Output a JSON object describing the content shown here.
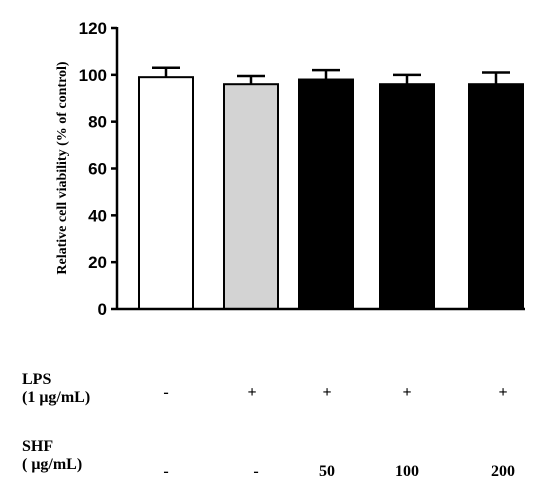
{
  "chart_data": {
    "type": "bar",
    "title": "",
    "xlabel": "",
    "ylabel": "Relative cell viability (% of control)",
    "ylim": [
      0,
      120
    ],
    "yticks": [
      0,
      20,
      40,
      60,
      80,
      100,
      120
    ],
    "grid": false,
    "bars": [
      {
        "value": 99,
        "error": 4,
        "color": "#ffffff"
      },
      {
        "value": 96,
        "error": 3.5,
        "color": "#d3d3d3"
      },
      {
        "value": 98,
        "error": 4,
        "color": "#000000"
      },
      {
        "value": 96,
        "error": 4,
        "color": "#000000"
      },
      {
        "value": 96,
        "error": 5,
        "color": "#000000"
      }
    ]
  },
  "treatments": {
    "lps": {
      "label_line1": "LPS",
      "label_line2": "(1 μg/mL)",
      "values": [
        "-",
        "+",
        "+",
        "+",
        "+"
      ]
    },
    "shf": {
      "label_line1": "SHF",
      "label_line2": "( μg/mL)",
      "values": [
        "-",
        "-",
        "50",
        "100",
        "200"
      ]
    }
  }
}
